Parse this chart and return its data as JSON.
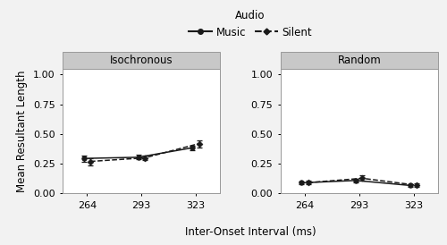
{
  "ioi": [
    264,
    293,
    323
  ],
  "iso_music_mean": [
    0.295,
    0.305,
    0.385
  ],
  "iso_music_se": [
    0.025,
    0.018,
    0.02
  ],
  "iso_silent_mean": [
    0.27,
    0.3,
    0.42
  ],
  "iso_silent_se": [
    0.03,
    0.022,
    0.03
  ],
  "ran_music_mean": [
    0.09,
    0.11,
    0.068
  ],
  "ran_music_se": [
    0.012,
    0.015,
    0.012
  ],
  "ran_silent_mean": [
    0.092,
    0.128,
    0.07
  ],
  "ran_silent_se": [
    0.015,
    0.022,
    0.013
  ],
  "ylim": [
    0.0,
    1.05
  ],
  "yticks": [
    0.0,
    0.25,
    0.5,
    0.75,
    1.0
  ],
  "xlabel": "Inter-Onset Interval (ms)",
  "ylabel": "Mean Resultant Length",
  "panel_labels": [
    "Isochronous",
    "Random"
  ],
  "legend_title": "Audio",
  "legend_labels": [
    "Music",
    "Silent"
  ],
  "line_color": "#1a1a1a",
  "strip_bg": "#c8c8c8",
  "strip_edge": "#999999",
  "fig_bg": "#f2f2f2",
  "panel_bg": "#ffffff",
  "title_fontsize": 8.5,
  "axis_fontsize": 8.5,
  "tick_fontsize": 8,
  "legend_fontsize": 8.5,
  "strip_fontsize": 8.5
}
